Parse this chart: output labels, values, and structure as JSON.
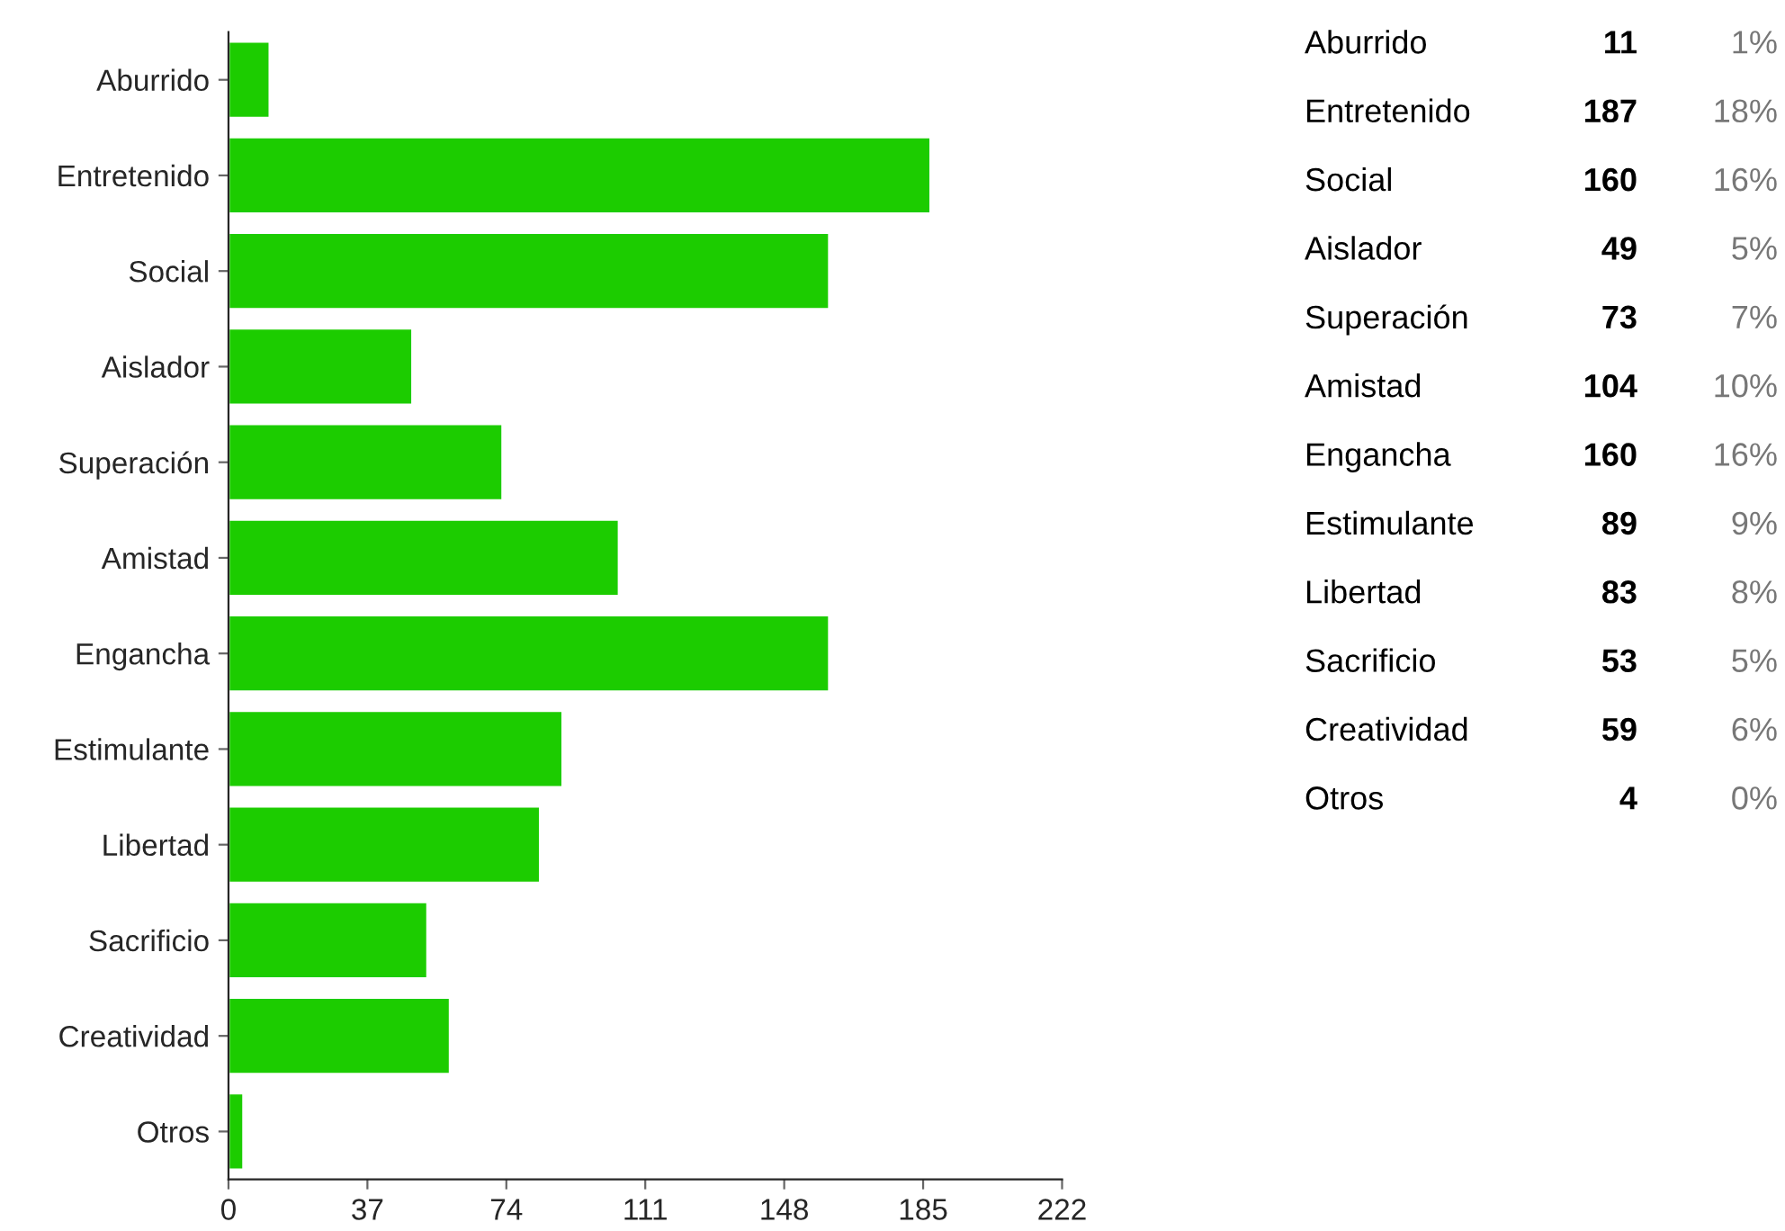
{
  "chart_data": [
    {
      "type": "bar",
      "orientation": "horizontal",
      "categories": [
        "Aburrido",
        "Entretenido",
        "Social",
        "Aislador",
        "Superación",
        "Amistad",
        "Engancha",
        "Estimulante",
        "Libertad",
        "Sacrificio",
        "Creatividad",
        "Otros"
      ],
      "values": [
        11,
        187,
        160,
        49,
        73,
        104,
        160,
        89,
        83,
        53,
        59,
        4
      ],
      "color": "#1ccc00",
      "xlim": [
        0,
        222
      ],
      "xticks": [
        0,
        37,
        74,
        111,
        148,
        185,
        222
      ]
    },
    {
      "type": "other",
      "annotations": [
        "Aburrido",
        "11",
        "1%",
        "Entretenido",
        "187",
        "18%",
        "Social",
        "160",
        "16%",
        "Aislador",
        "49",
        "5%",
        "Superación",
        "73",
        "7%",
        "Amistad",
        "104",
        "10%",
        "Engancha",
        "160",
        "16%",
        "Estimulante",
        "89",
        "9%",
        "Libertad",
        "83",
        "8%",
        "Sacrificio",
        "53",
        "5%",
        "Creatividad",
        "59",
        "6%",
        "Otros",
        "4",
        "0%"
      ]
    }
  ]
}
